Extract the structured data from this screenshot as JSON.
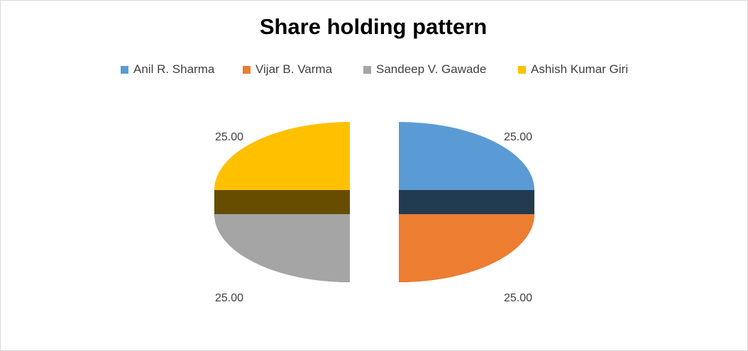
{
  "chart_data": {
    "type": "pie",
    "title": "Share holding pattern",
    "categories": [
      "Anil R. Sharma",
      "Vijar B. Varma",
      "Sandeep V. Gawade",
      "Ashish Kumar Giri"
    ],
    "values": [
      25.0,
      25.0,
      25.0,
      25.0
    ],
    "data_labels": [
      "25.00",
      "25.00",
      "25.00",
      "25.00"
    ],
    "colors": [
      "#5b9bd5",
      "#ed7d31",
      "#a5a5a5",
      "#ffc000"
    ],
    "legend_position": "top",
    "style": "3d-exploded"
  }
}
